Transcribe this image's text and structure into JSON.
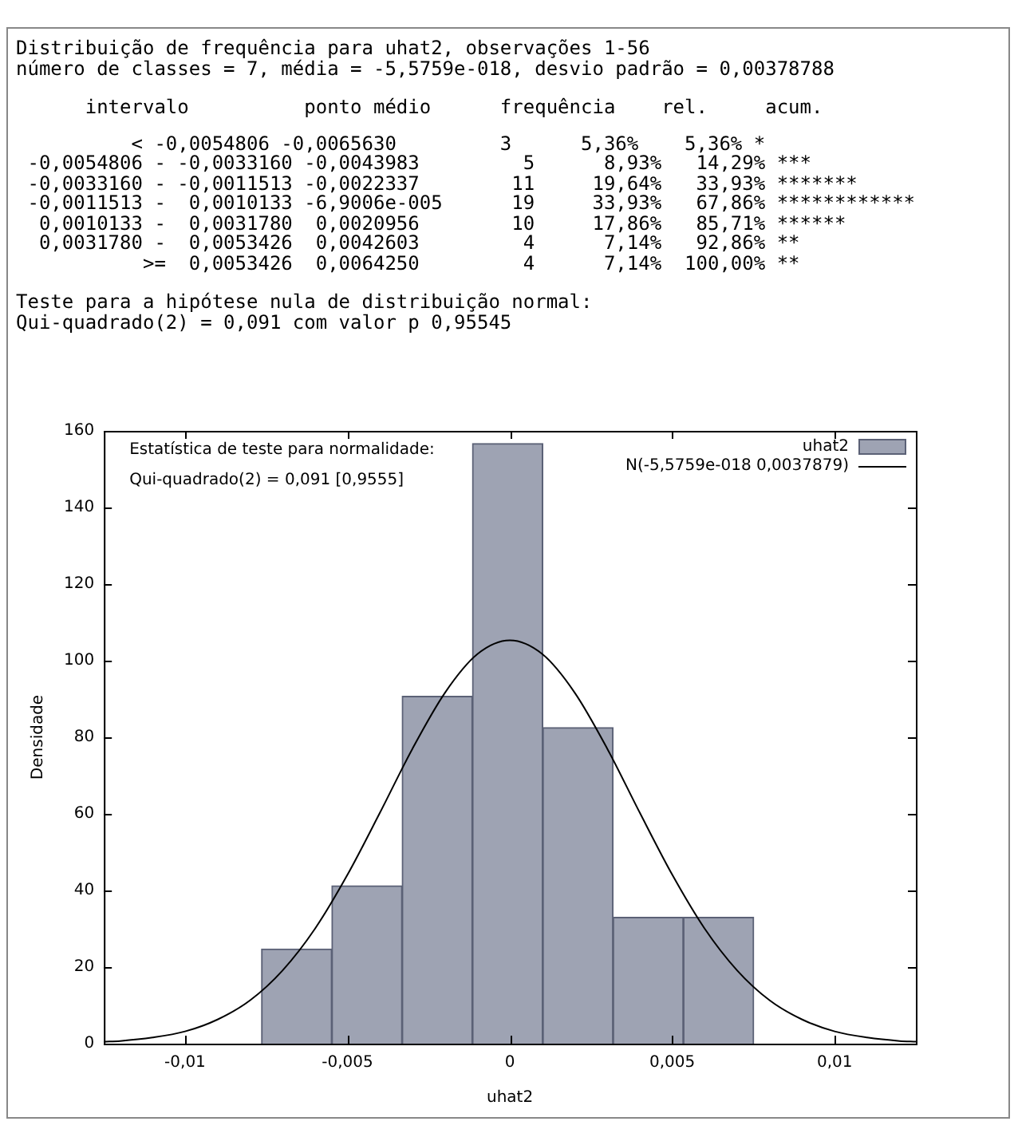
{
  "chart_data": {
    "type": "histogram",
    "title": "Distribuição de frequência para uhat2, observações 1-56",
    "subtitle": "número de classes = 7, média = -5,5759e-018, desvio padrão = 0,00378788",
    "annotations": [
      "      intervalo          ponto médio      frequência    rel.     acum.",
      "          < -0,0054806 -0,0065630         3      5,36%    5,36% *",
      " -0,0054806 - -0,0033160 -0,0043983         5      8,93%   14,29% ***",
      " -0,0033160 - -0,0011513 -0,0022337        11     19,64%   33,93% *******",
      " -0,0011513 -  0,0010133 -6,9006e-005      19     33,93%   67,86% ************",
      "  0,0010133 -  0,0031780  0,0020956        10     17,86%   85,71% ******",
      "  0,0031780 -  0,0053426  0,0042603         4      7,14%   92,86% **",
      "           >=  0,0053426  0,0064250         4      7,14%  100,00% **",
      "Teste para a hipótese nula de distribuição normal:",
      "Qui-quadrado(2) = 0,091 com valor p 0,95545",
      "Estatística de teste para normalidade:",
      "Qui-quadrado(2) = 0,091 [0,9555]"
    ],
    "xlabel": "uhat2",
    "ylabel": "Densidade",
    "xlim": [
      -0.0125,
      0.0125
    ],
    "xticks": [
      {
        "value": -0.01,
        "label": "-0,01"
      },
      {
        "value": -0.005,
        "label": "-0,005"
      },
      {
        "value": 0,
        "label": "0"
      },
      {
        "value": 0.005,
        "label": "0,005"
      },
      {
        "value": 0.01,
        "label": "0,01"
      }
    ],
    "ylim": [
      0,
      160
    ],
    "yticks": [
      0,
      20,
      40,
      60,
      80,
      100,
      120,
      140,
      160
    ],
    "series": [
      {
        "name": "uhat2",
        "color": "#9ea3b3",
        "bins": [
          -0.0076453,
          -0.0054806,
          -0.003316,
          -0.0011513,
          0.0010133,
          0.003178,
          0.0053426,
          0.0075073
        ],
        "values": [
          24.7,
          41.2,
          90.7,
          156.7,
          82.5,
          33.0,
          33.0
        ]
      },
      {
        "name": "N(-5,5759e-018 0,0037879)",
        "type": "line",
        "color": "#000000",
        "x": [
          -0.0125,
          -0.012,
          -0.011,
          -0.01,
          -0.009,
          -0.008,
          -0.007,
          -0.006,
          -0.005,
          -0.004,
          -0.003,
          -0.002,
          -0.001,
          0,
          0.001,
          0.002,
          0.003,
          0.004,
          0.005,
          0.006,
          0.007,
          0.008,
          0.009,
          0.01,
          0.011,
          0.012,
          0.0125
        ],
        "values": [
          0.5,
          0.7,
          1.6,
          3.2,
          6.3,
          11.3,
          19.1,
          30.0,
          44.1,
          60.3,
          77.0,
          91.6,
          101.7,
          105.3,
          101.7,
          91.6,
          77.0,
          60.3,
          44.1,
          30.0,
          19.1,
          11.3,
          6.3,
          3.2,
          1.6,
          0.7,
          0.5
        ]
      }
    ],
    "legend": "top right",
    "grid": false,
    "marker": "none",
    "line_style": "solid"
  }
}
